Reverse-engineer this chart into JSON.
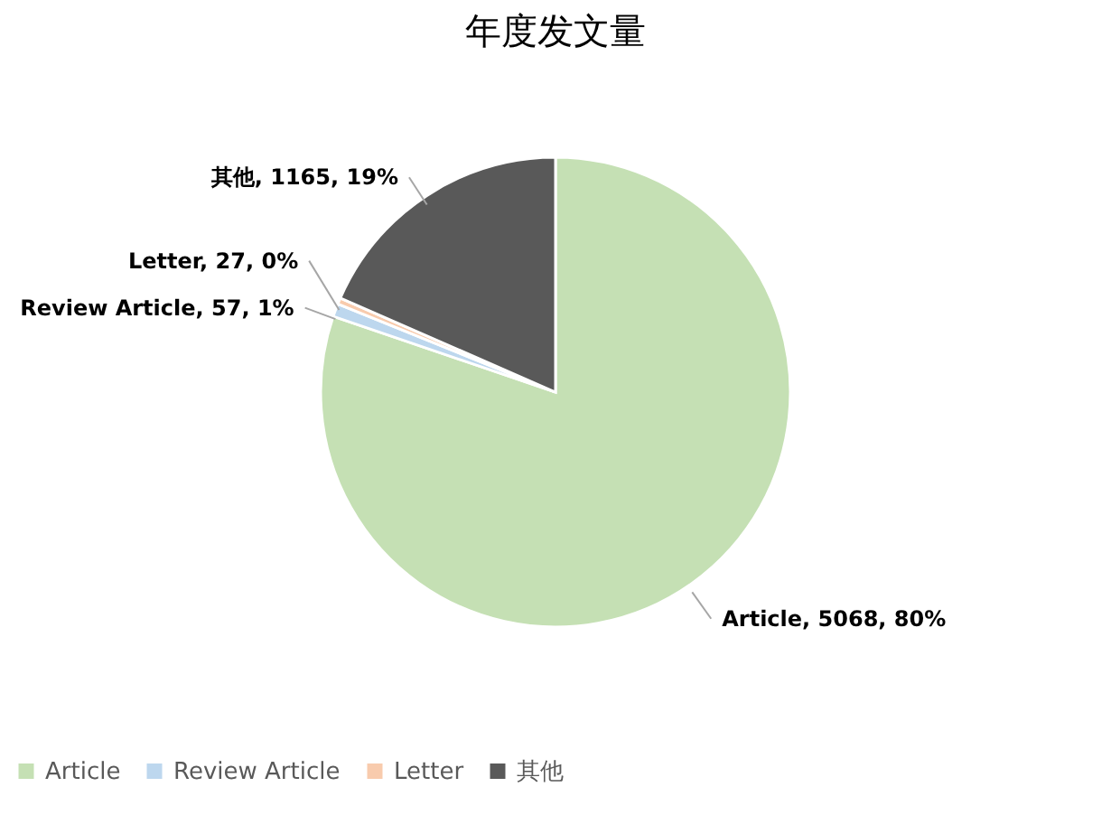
{
  "chart_data": {
    "type": "pie",
    "title": "年度发文量",
    "categories": [
      "Article",
      "Review Article",
      "Letter",
      "其他"
    ],
    "values": [
      5068,
      57,
      27,
      1165
    ],
    "colors": [
      "#c5e0b4",
      "#bdd7ee",
      "#f8cbad",
      "#595959"
    ],
    "value_labels": [
      "Article, 5068, 80%",
      "Review Article, 57, 1%",
      "Letter, 27, 0%",
      "其他, 1165, 19%"
    ],
    "legend": "bottom"
  }
}
